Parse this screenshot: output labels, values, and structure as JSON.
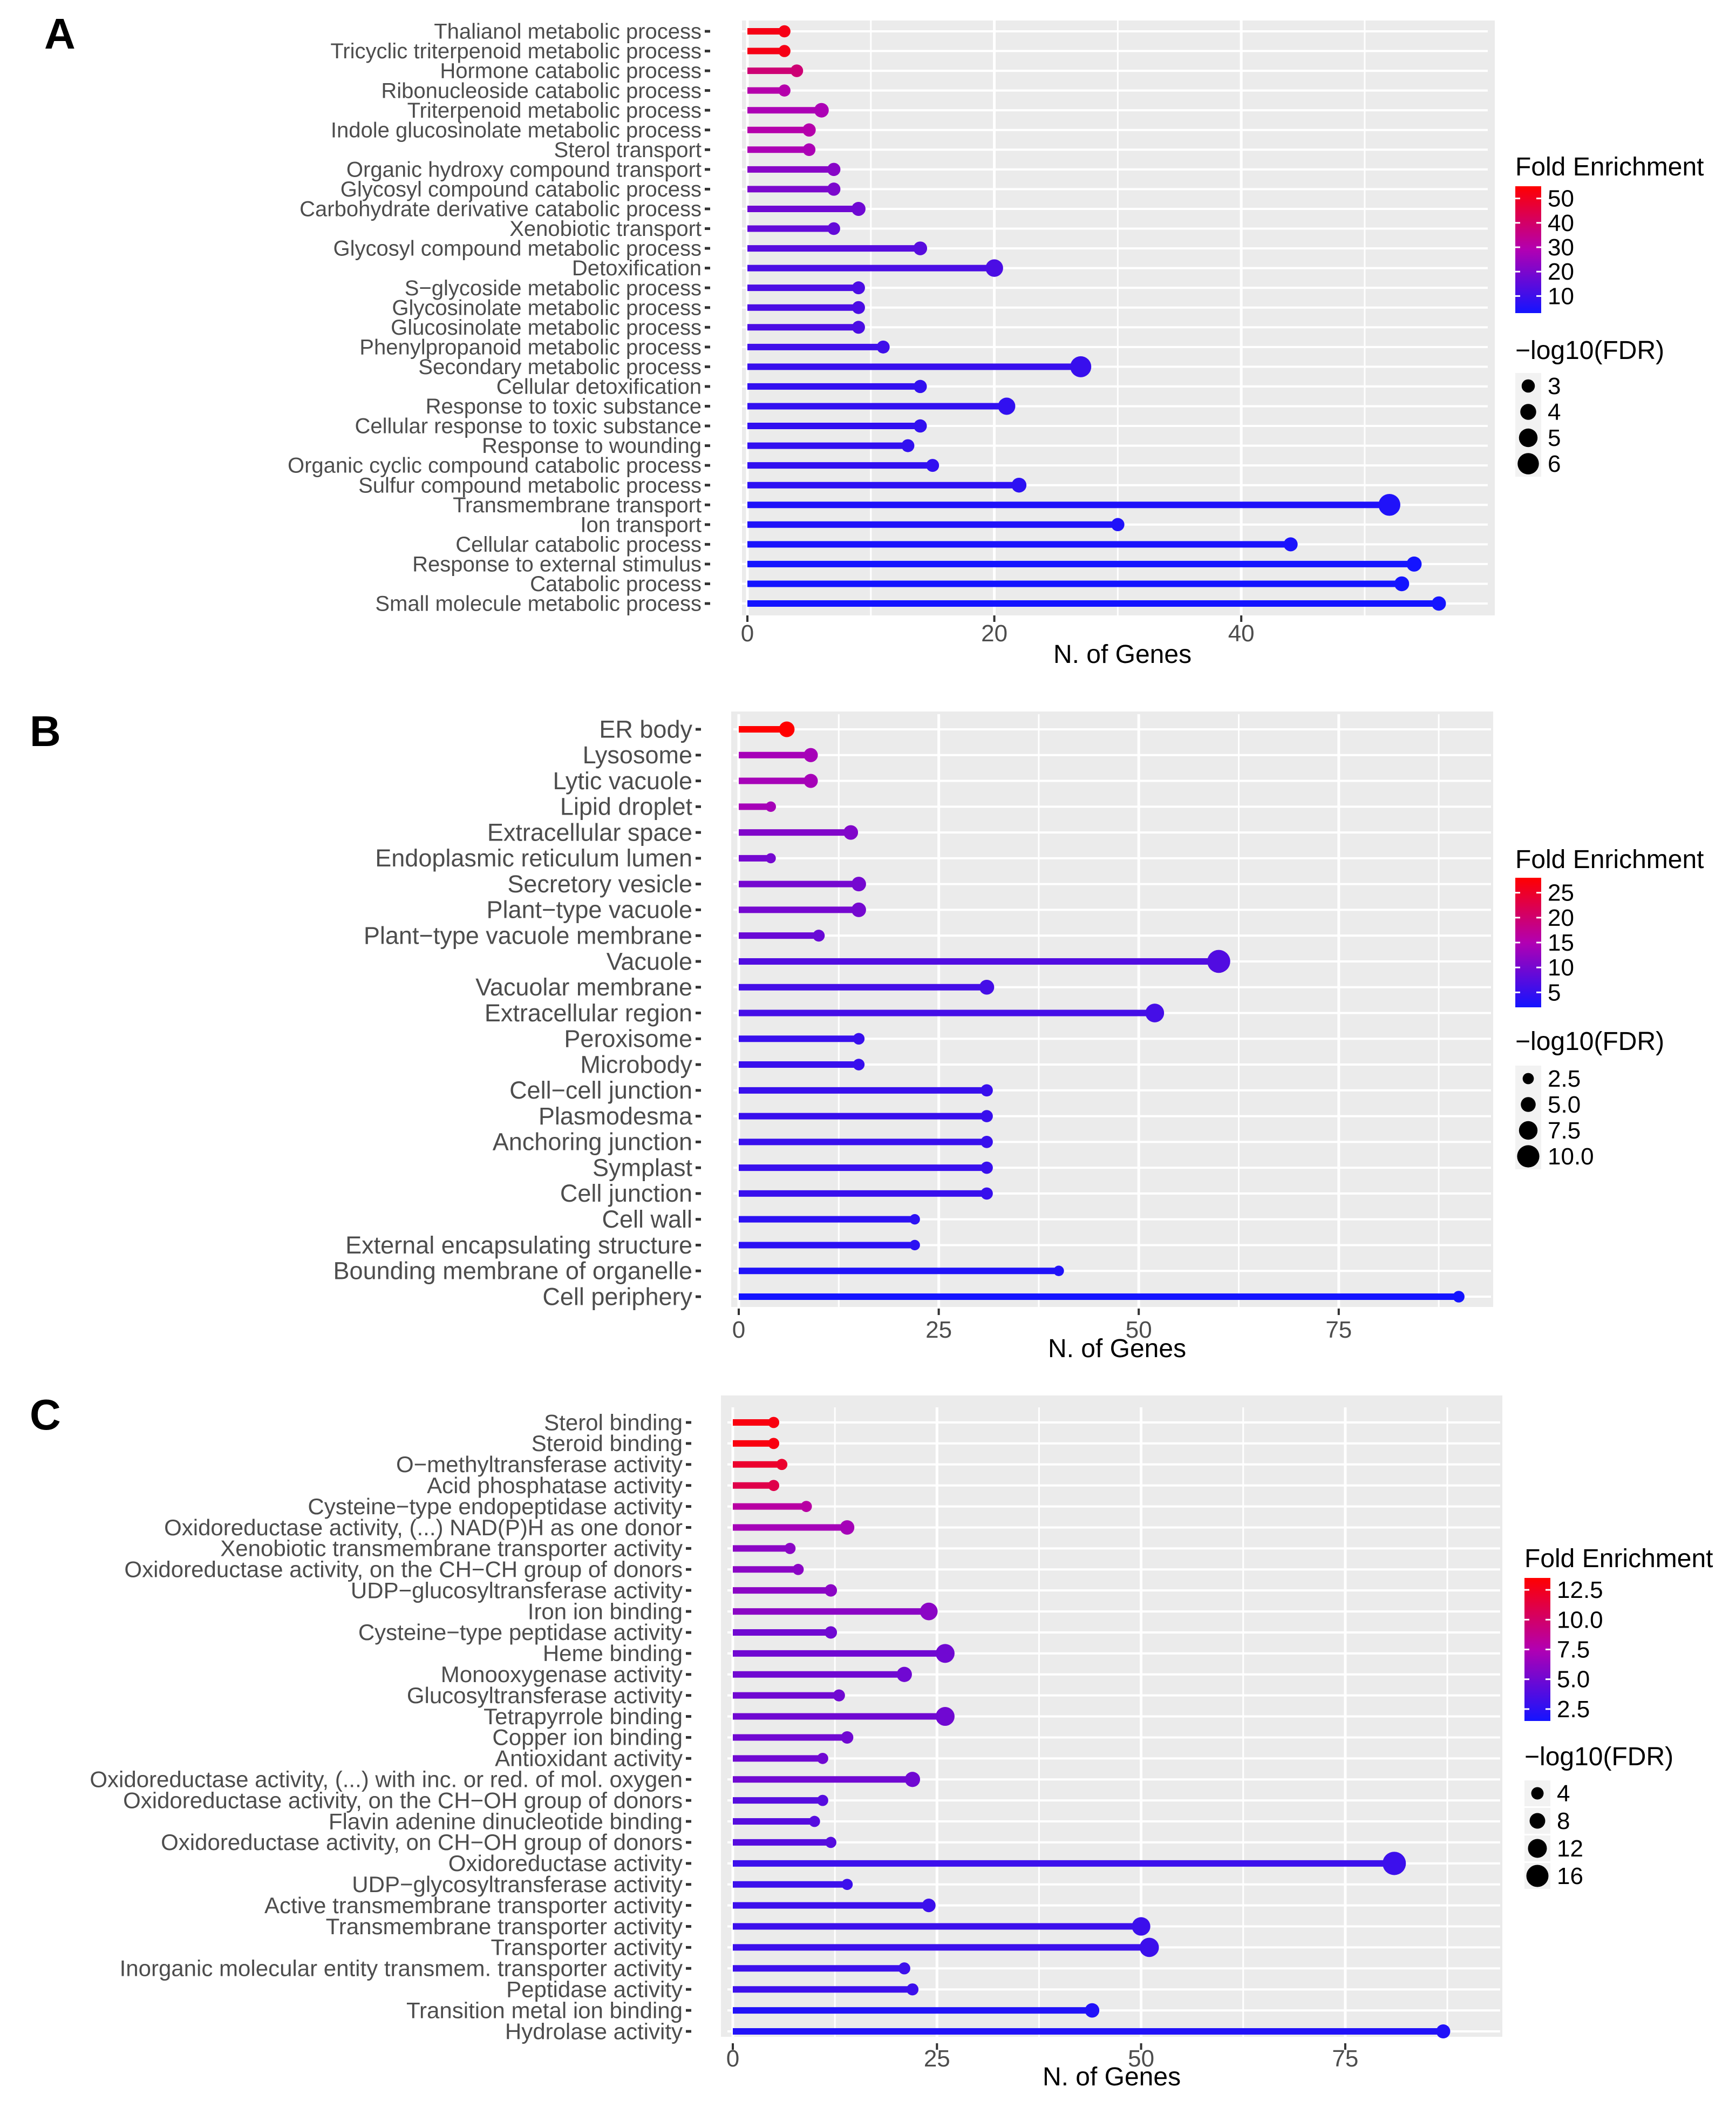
{
  "chart_data": [
    {
      "panel": "A",
      "type": "lollipop",
      "xlabel": "N. of Genes",
      "xlim": [
        0,
        58
      ],
      "xticks": [
        0,
        20,
        40
      ],
      "categories": [
        "Thalianol metabolic process",
        "Tricyclic triterpenoid metabolic process",
        "Hormone catabolic process",
        "Ribonucleoside catabolic process",
        "Triterpenoid metabolic process",
        "Indole glucosinolate metabolic process",
        "Sterol transport",
        "Organic hydroxy compound transport",
        "Glycosyl compound catabolic process",
        "Carbohydrate derivative catabolic process",
        "Xenobiotic transport",
        "Glycosyl compound metabolic process",
        "Detoxification",
        "S−glycoside metabolic process",
        "Glycosinolate metabolic process",
        "Glucosinolate metabolic process",
        "Phenylpropanoid metabolic process",
        "Secondary metabolic process",
        "Cellular detoxification",
        "Response to toxic substance",
        "Cellular response to toxic substance",
        "Response to wounding",
        "Organic cyclic compound catabolic process",
        "Sulfur compound metabolic process",
        "Transmembrane transport",
        "Ion transport",
        "Cellular catabolic process",
        "Response to external stimulus",
        "Catabolic process",
        "Small molecule metabolic process"
      ],
      "genes": [
        3,
        3,
        4,
        3,
        6,
        5,
        5,
        7,
        7,
        9,
        7,
        14,
        20,
        9,
        9,
        9,
        11,
        27,
        14,
        21,
        14,
        13,
        15,
        22,
        52,
        30,
        44,
        54,
        53,
        56
      ],
      "fold_enrichment": [
        52,
        52,
        38,
        30,
        28,
        30,
        28,
        22,
        20,
        18,
        16,
        14,
        12,
        12,
        12,
        12,
        10,
        9,
        8,
        8,
        8,
        8,
        8,
        7,
        5,
        5,
        4,
        3,
        3,
        3
      ],
      "neg_log10_fdr": [
        2.6,
        2.6,
        2.8,
        2.6,
        3.5,
        3.0,
        2.8,
        3.0,
        3.0,
        3.3,
        2.8,
        3.2,
        4.6,
        2.9,
        2.9,
        2.9,
        2.9,
        5.9,
        3.0,
        4.5,
        3.0,
        2.9,
        2.9,
        3.6,
        6.2,
        3.0,
        3.3,
        3.7,
        3.6,
        3.4
      ],
      "color_scale": {
        "title": "Fold Enrichment",
        "min": 3,
        "max": 55,
        "ticks": [
          "50",
          "40",
          "30",
          "20",
          "10"
        ],
        "tick_values": [
          50,
          40,
          30,
          20,
          10
        ]
      },
      "size_scale": {
        "title": "−log10(FDR)",
        "labels": [
          "3",
          "4",
          "5",
          "6"
        ],
        "values": [
          3,
          4,
          5,
          6
        ],
        "min": 2.5,
        "max": 6.5
      }
    },
    {
      "panel": "B",
      "type": "lollipop",
      "xlabel": "N. of Genes",
      "xlim": [
        0,
        91
      ],
      "xticks": [
        0,
        25,
        50,
        75
      ],
      "categories": [
        "ER body",
        "Lysosome",
        "Lytic vacuole",
        "Lipid droplet",
        "Extracellular space",
        "Endoplasmic reticulum lumen",
        "Secretory vesicle",
        "Plant−type vacuole",
        "Plant−type vacuole membrane",
        "Vacuole",
        "Vacuolar membrane",
        "Extracellular region",
        "Peroxisome",
        "Microbody",
        "Cell−cell junction",
        "Plasmodesma",
        "Anchoring junction",
        "Symplast",
        "Cell junction",
        "Cell wall",
        "External encapsulating structure",
        "Bounding membrane of organelle",
        "Cell periphery"
      ],
      "genes": [
        6,
        9,
        9,
        4,
        14,
        4,
        15,
        15,
        10,
        60,
        31,
        52,
        15,
        15,
        31,
        31,
        31,
        31,
        31,
        22,
        22,
        40,
        90
      ],
      "fold_enrichment": [
        28,
        14,
        14,
        14,
        11,
        10,
        10,
        10,
        9,
        7,
        6,
        6,
        5,
        5,
        5,
        5,
        5,
        5,
        5,
        4,
        4,
        3,
        2
      ],
      "neg_log10_fdr": [
        5.5,
        4.5,
        4.5,
        2.0,
        4.8,
        1.8,
        4.8,
        4.8,
        3.0,
        10.5,
        5.0,
        7.6,
        2.8,
        2.8,
        3.2,
        3.2,
        3.2,
        3.2,
        3.2,
        2.0,
        2.0,
        2.0,
        2.8
      ],
      "color_scale": {
        "title": "Fold Enrichment",
        "min": 2,
        "max": 28,
        "ticks": [
          "25",
          "20",
          "15",
          "10",
          "5"
        ],
        "tick_values": [
          25,
          20,
          15,
          10,
          5
        ]
      },
      "size_scale": {
        "title": "−log10(FDR)",
        "labels": [
          "2.5",
          "5.0",
          "7.5",
          "10.0"
        ],
        "values": [
          2.5,
          5.0,
          7.5,
          10.0
        ],
        "min": 1.5,
        "max": 11.0
      }
    },
    {
      "panel": "C",
      "type": "lollipop",
      "xlabel": "N. of Genes",
      "xlim": [
        0,
        91
      ],
      "xticks": [
        0,
        25,
        50,
        75
      ],
      "categories": [
        "Sterol binding",
        "Steroid binding",
        "O−methyltransferase activity",
        "Acid phosphatase activity",
        "Cysteine−type endopeptidase activity",
        "Oxidoreductase activity, (...) NAD(P)H as one donor",
        "Xenobiotic transmembrane transporter activity",
        "Oxidoreductase activity, on the CH−CH group of donors",
        "UDP−glucosyltransferase activity",
        "Iron ion binding",
        "Cysteine−type peptidase activity",
        "Heme binding",
        "Monooxygenase activity",
        "Glucosyltransferase activity",
        "Tetrapyrrole binding",
        "Copper ion binding",
        "Antioxidant activity",
        "Oxidoreductase activity, (...) with inc. or red. of mol. oxygen",
        "Oxidoreductase activity, on the CH−OH group of donors",
        "Flavin adenine dinucleotide binding",
        "Oxidoreductase activity, on CH−OH group of donors",
        "Oxidoreductase activity",
        "UDP−glycosyltransferase activity",
        "Active transmembrane transporter activity",
        "Transmembrane transporter activity",
        "Transporter activity",
        "Inorganic molecular entity transmem. transporter activity",
        "Peptidase activity",
        "Transition metal ion binding",
        "Hydrolase activity"
      ],
      "genes": [
        5,
        5,
        6,
        5,
        9,
        14,
        7,
        8,
        12,
        24,
        12,
        26,
        21,
        13,
        26,
        14,
        11,
        22,
        11,
        10,
        12,
        81,
        14,
        24,
        50,
        51,
        21,
        22,
        44,
        87
      ],
      "fold_enrichment": [
        13,
        13,
        12,
        11,
        8,
        7,
        6,
        6,
        6,
        6,
        5,
        5,
        5,
        5,
        5,
        5,
        5,
        5,
        4,
        4,
        4,
        3,
        3,
        3,
        3,
        3,
        3,
        3,
        2,
        2
      ],
      "neg_log10_fdr": [
        2.5,
        2.5,
        2.5,
        2.5,
        2.5,
        6.5,
        2.5,
        2.5,
        4.0,
        10.5,
        4.0,
        12.0,
        7.5,
        3.5,
        12.0,
        4.0,
        2.5,
        7.5,
        2.5,
        2.5,
        2.5,
        17.5,
        2.5,
        5.5,
        11.5,
        12.5,
        3.5,
        3.5,
        6.5,
        6.0
      ],
      "color_scale": {
        "title": "Fold Enrichment",
        "min": 1.5,
        "max": 13.5,
        "ticks": [
          "12.5",
          "10.0",
          "7.5",
          "5.0",
          "2.5"
        ],
        "tick_values": [
          12.5,
          10.0,
          7.5,
          5.0,
          2.5
        ]
      },
      "size_scale": {
        "title": "−log10(FDR)",
        "labels": [
          "4",
          "8",
          "12",
          "16"
        ],
        "values": [
          4,
          8,
          12,
          16
        ],
        "min": 2.0,
        "max": 18.0
      }
    }
  ]
}
